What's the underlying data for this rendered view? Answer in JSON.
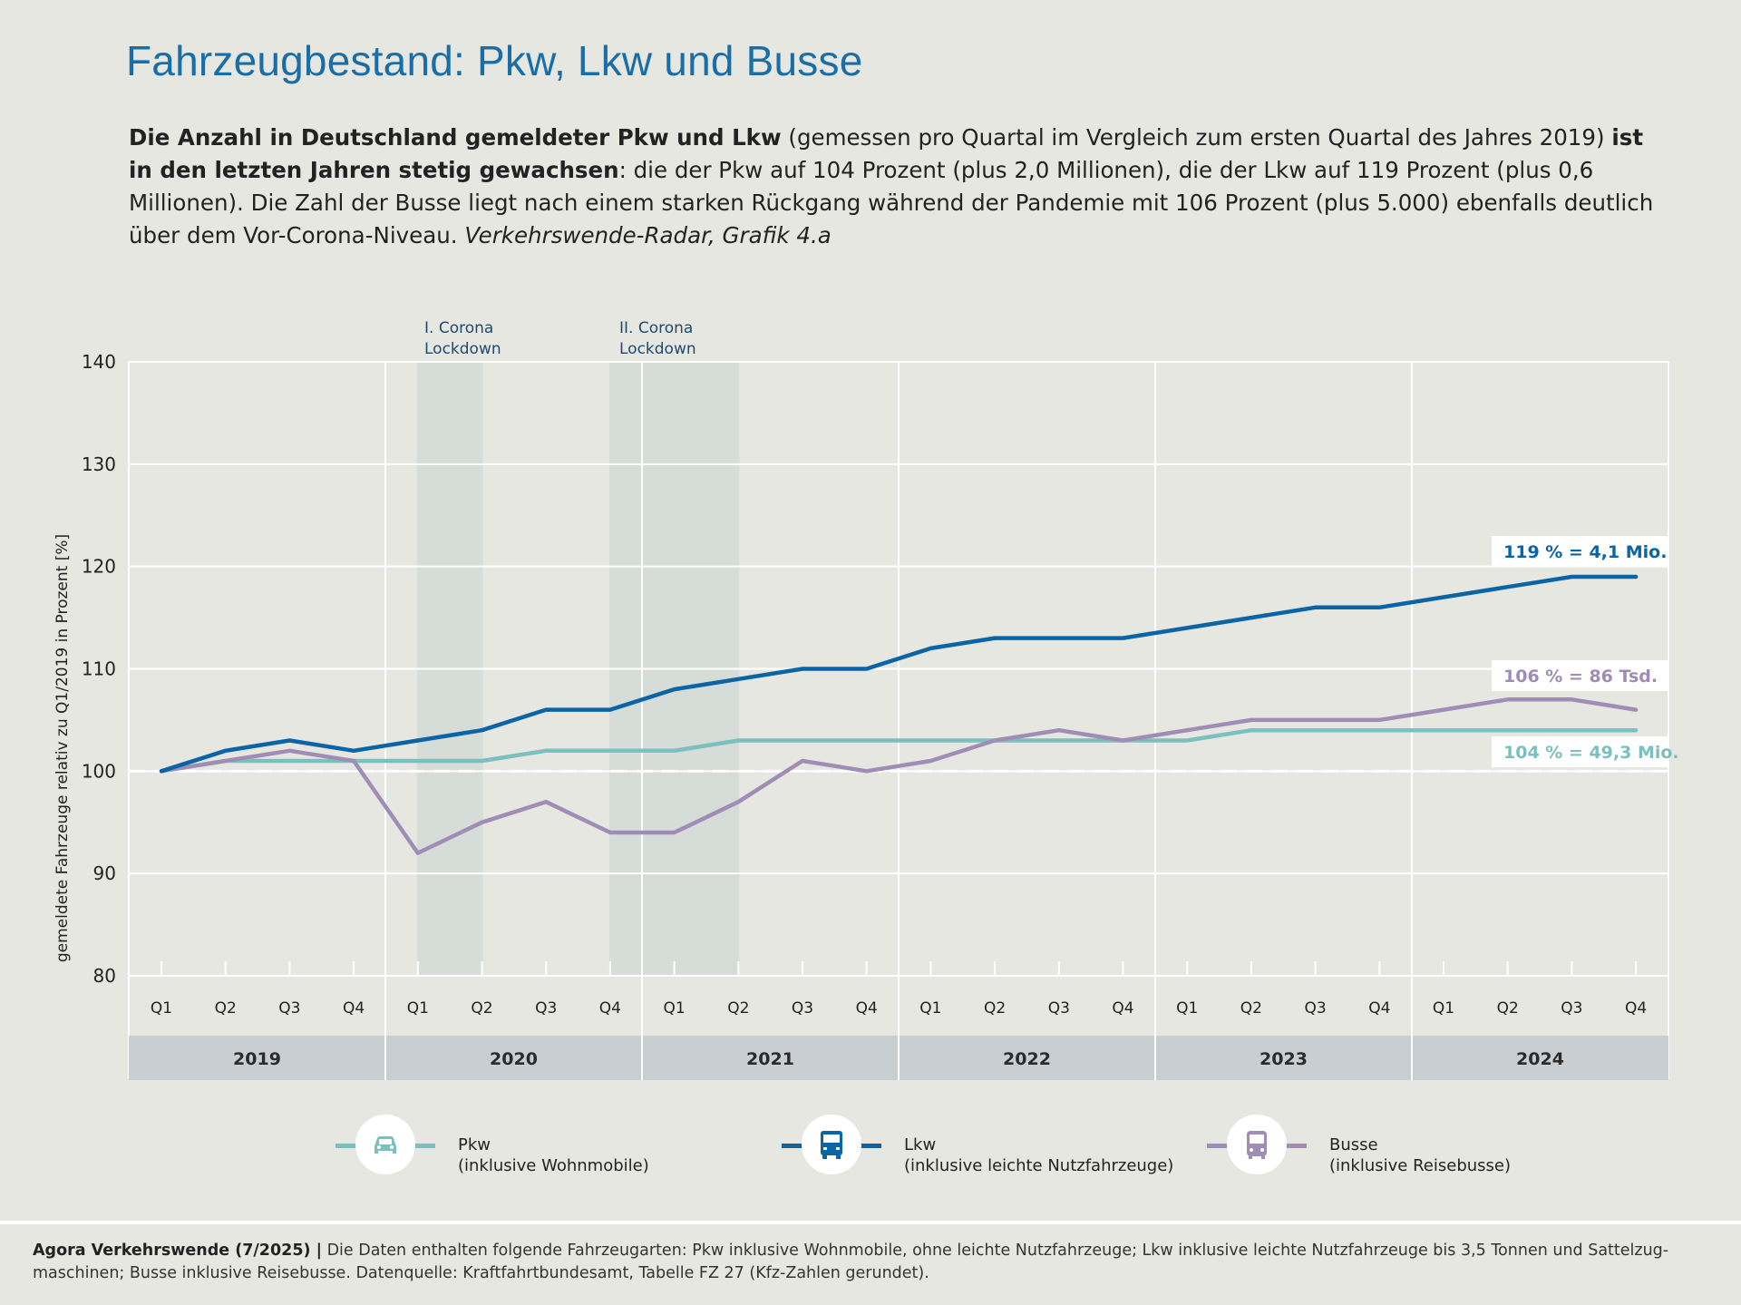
{
  "title": "Fahrzeugbestand: Pkw, Lkw und Busse",
  "intro": {
    "bold1": "Die Anzahl in Deutschland gemeldeter Pkw und Lkw",
    "text1": " (gemessen pro Quartal im Vergleich zum ersten Quartal des Jahres 2019) ",
    "bold2": "ist in den letzten Jahren stetig gewachsen",
    "text2": ": die der Pkw auf 104 Prozent (plus 2,0 Millionen), die der Lkw auf 119 Prozent (plus 0,6 Millionen). Die Zahl der Busse liegt nach einem starken Rückgang während der Pandemie mit 106 Prozent (plus 5.000) ebenfalls deutlich über dem Vor-Corona-Niveau. ",
    "source_italic": "Verkehrswende-Radar, Grafik 4.a"
  },
  "colors": {
    "pkw": "#7cbfbf",
    "lkw": "#0b64a5",
    "busse": "#a08db5",
    "title": "#1a6ea8",
    "lockdown_label": "#1e4a6e",
    "lockdown_band": "#d6dcd8",
    "year_band": "#c9ced2"
  },
  "chart_data": {
    "type": "line",
    "ylabel": "gemeldete Fahrzeuge relativ zu Q1/2019 in Prozent [%]",
    "xlabel": "",
    "ylim": [
      80,
      140
    ],
    "yticks": [
      80,
      90,
      100,
      110,
      120,
      130,
      140
    ],
    "grid": true,
    "reference_line": 100,
    "quarters": [
      "Q1",
      "Q2",
      "Q3",
      "Q4",
      "Q1",
      "Q2",
      "Q3",
      "Q4",
      "Q1",
      "Q2",
      "Q3",
      "Q4",
      "Q1",
      "Q2",
      "Q3",
      "Q4",
      "Q1",
      "Q2",
      "Q3",
      "Q4",
      "Q1",
      "Q2",
      "Q3",
      "Q4"
    ],
    "years": [
      "2019",
      "2020",
      "2021",
      "2022",
      "2023",
      "2024"
    ],
    "series": [
      {
        "key": "pkw",
        "name": "Pkw",
        "subname": "(inklusive Wohnmobile)",
        "values": [
          100,
          101,
          101,
          101,
          101,
          101,
          102,
          102,
          102,
          103,
          103,
          103,
          103,
          103,
          103,
          103,
          103,
          104,
          104,
          104,
          104,
          104,
          104,
          104
        ],
        "end_label": "104 % = 49,3 Mio."
      },
      {
        "key": "lkw",
        "name": "Lkw",
        "subname": "(inklusive leichte Nutzfahrzeuge)",
        "values": [
          100,
          102,
          103,
          102,
          103,
          104,
          106,
          106,
          108,
          109,
          110,
          110,
          112,
          113,
          113,
          113,
          114,
          115,
          116,
          116,
          117,
          118,
          119,
          119
        ],
        "end_label": "119 % = 4,1 Mio."
      },
      {
        "key": "busse",
        "name": "Busse",
        "subname": "(inklusive Reisebusse)",
        "values": [
          100,
          101,
          102,
          101,
          92,
          95,
          97,
          94,
          94,
          97,
          101,
          100,
          101,
          103,
          104,
          103,
          104,
          105,
          105,
          105,
          106,
          107,
          107,
          106
        ],
        "end_label": "106 % = 86 Tsd."
      }
    ],
    "lockdowns": [
      {
        "label1": "I. Corona",
        "label2": "Lockdown",
        "from": 4,
        "to": 5
      },
      {
        "label1": "II. Corona",
        "label2": "Lockdown",
        "from": 7,
        "to": 9
      }
    ]
  },
  "footer": {
    "bold": "Agora Verkehrswende (7/2025) |",
    "text": " Die Daten enthalten folgende Fahrzeugarten: Pkw inklusive Wohnmobile, ohne leichte Nutzfahrzeuge; Lkw inklusive leichte Nutzfahrzeuge bis 3,5 Tonnen und Sattelzug­maschinen; Busse inklusive Reisebusse. Datenquelle: Kraftfahrtbundesamt, Tabelle FZ 27 (Kfz-Zahlen gerundet)."
  }
}
